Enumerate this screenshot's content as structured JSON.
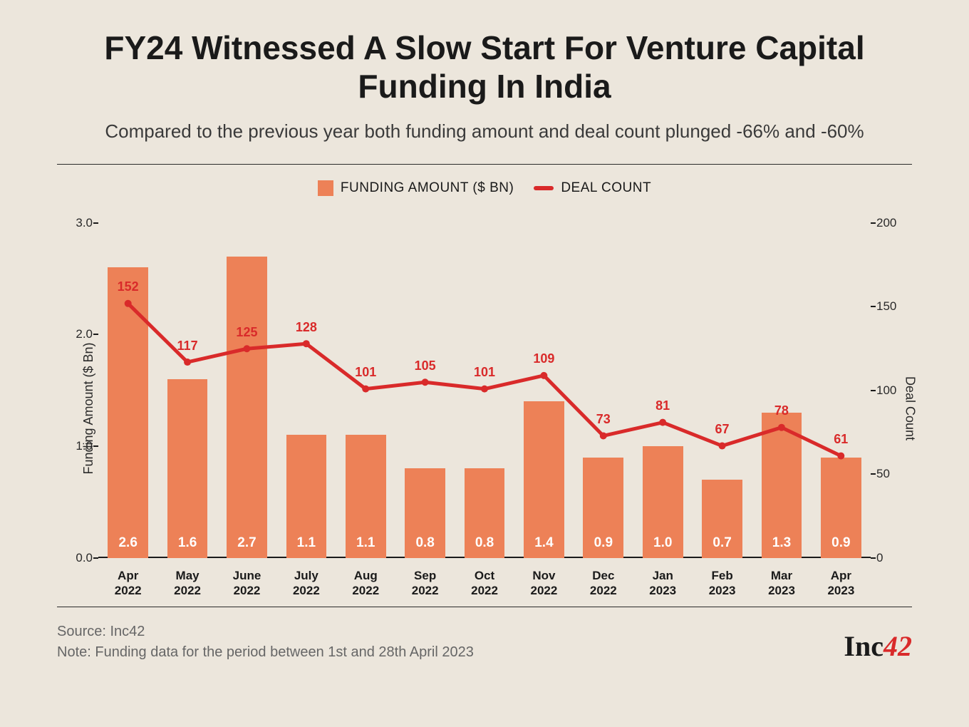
{
  "title": "FY24 Witnessed A Slow Start For Venture Capital Funding In India",
  "subtitle": "Compared to the previous year both funding amount and deal count plunged -66% and -60%",
  "legend": {
    "bar_label": "FUNDING AMOUNT ($ BN)",
    "line_label": "DEAL COUNT"
  },
  "chart": {
    "type": "bar+line",
    "categories": [
      "Apr 2022",
      "May 2022",
      "June 2022",
      "July 2022",
      "Aug 2022",
      "Sep 2022",
      "Oct 2022",
      "Nov 2022",
      "Dec 2022",
      "Jan 2023",
      "Feb 2023",
      "Mar 2023",
      "Apr 2023"
    ],
    "funding_values": [
      2.6,
      1.6,
      2.7,
      1.1,
      1.1,
      0.8,
      0.8,
      1.4,
      0.9,
      1.0,
      0.7,
      1.3,
      0.9
    ],
    "deal_counts": [
      152,
      117,
      125,
      128,
      101,
      105,
      101,
      109,
      73,
      81,
      67,
      78,
      61
    ],
    "bar_color": "#ed8157",
    "line_color": "#d92a2a",
    "line_width": 5,
    "marker_radius": 5,
    "y_left": {
      "label": "Funding Amount ($ Bn)",
      "min": 0.0,
      "max": 3.0,
      "ticks": [
        0.0,
        1.0,
        2.0,
        3.0
      ]
    },
    "y_right": {
      "label": "Deal Count",
      "min": 0,
      "max": 200,
      "ticks": [
        0,
        50,
        100,
        150,
        200
      ]
    },
    "background_color": "#ece6dc",
    "bar_label_color": "#ffffff",
    "deal_label_color": "#d92a2a",
    "axis_fontsize": 17,
    "title_fontsize": 46,
    "subtitle_fontsize": 26
  },
  "footer": {
    "source": "Source: Inc42",
    "note": "Note: Funding data for the period between 1st and 28th April 2023",
    "logo_black": "Inc",
    "logo_red": "42"
  }
}
